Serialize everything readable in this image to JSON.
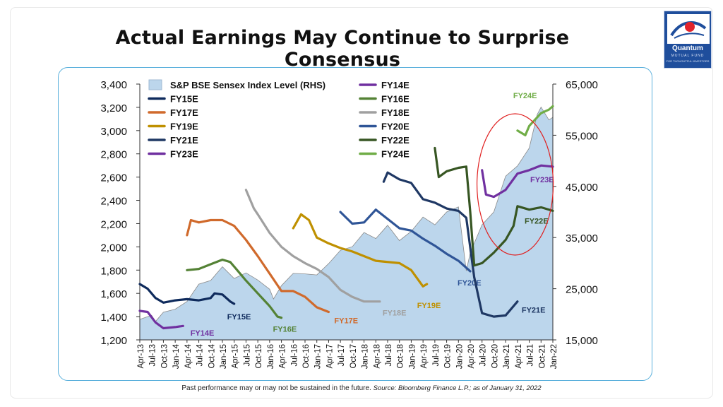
{
  "title": "Actual Earnings May Continue to Surprise Consensus",
  "logo": {
    "name": "Quantum",
    "sub": "MUTUAL FUND",
    "tagline": "FOR THOUGHTFUL INVESTORS",
    "colors": {
      "bg": "#1f4e9c",
      "accent": "#e2242b"
    }
  },
  "footnote": {
    "text": "Past performance may or may not be sustained in the future.",
    "source": "Source: Bloomberg Finance L.P.; as of January 31, 2022"
  },
  "chart_data": {
    "type": "line",
    "title": "",
    "xlabel": "",
    "ylabel": "",
    "y_left_lim": [
      1200,
      3400
    ],
    "y_left_ticks": [
      "1,200",
      "1,400",
      "1,600",
      "1,800",
      "2,000",
      "2,200",
      "2,400",
      "2,600",
      "2,800",
      "3,000",
      "3,200",
      "3,400"
    ],
    "y_right_lim": [
      15000,
      65000
    ],
    "y_right_ticks": [
      "15,000",
      "25,000",
      "35,000",
      "45,000",
      "55,000",
      "65,000"
    ],
    "x_ticks": [
      "Apr-13",
      "Jul-13",
      "Oct-13",
      "Jan-14",
      "Apr-14",
      "Jul-14",
      "Oct-14",
      "Jan-15",
      "Apr-15",
      "Jul-15",
      "Oct-15",
      "Jan-16",
      "Apr-16",
      "Jul-16",
      "Oct-16",
      "Jan-17",
      "Apr-17",
      "Jul-17",
      "Oct-17",
      "Jan-18",
      "Apr-18",
      "Jul-18",
      "Oct-18",
      "Jan-19",
      "Apr-19",
      "Jul-19",
      "Oct-19",
      "Jan-20",
      "Apr-20",
      "Jul-20",
      "Oct-20",
      "Jan-21",
      "Apr-21",
      "Jul-21",
      "Oct-21",
      "Jan-22"
    ],
    "legend_placement": "top-left",
    "grid": false,
    "highlight": {
      "shape": "ellipse",
      "color": "#e02020",
      "around": "FY24E / FY23E / FY22E, Jan-21 to Jan-22"
    },
    "area": {
      "name": "S&P BSE Sensex Index Level (RHS)",
      "axis": "right",
      "color": "#bcd6ec",
      "edge": "#8a8a8a",
      "points": [
        [
          "Apr-13",
          19000
        ],
        [
          "Jul-13",
          19800
        ],
        [
          "Aug-13",
          18600
        ],
        [
          "Oct-13",
          20400
        ],
        [
          "Jan-14",
          21000
        ],
        [
          "Apr-14",
          22500
        ],
        [
          "Jul-14",
          25900
        ],
        [
          "Oct-14",
          26600
        ],
        [
          "Jan-15",
          29300
        ],
        [
          "Apr-15",
          27000
        ],
        [
          "Jul-15",
          28100
        ],
        [
          "Oct-15",
          26700
        ],
        [
          "Jan-16",
          24900
        ],
        [
          "Feb-16",
          23000
        ],
        [
          "Apr-16",
          25600
        ],
        [
          "Jul-16",
          28000
        ],
        [
          "Oct-16",
          27900
        ],
        [
          "Jan-17",
          27700
        ],
        [
          "Apr-17",
          29900
        ],
        [
          "Jul-17",
          32500
        ],
        [
          "Oct-17",
          33200
        ],
        [
          "Jan-18",
          36000
        ],
        [
          "Apr-18",
          34800
        ],
        [
          "Jul-18",
          37400
        ],
        [
          "Oct-18",
          34400
        ],
        [
          "Jan-19",
          36200
        ],
        [
          "Apr-19",
          39000
        ],
        [
          "Jul-19",
          37500
        ],
        [
          "Oct-19",
          40000
        ],
        [
          "Jan-20",
          41000
        ],
        [
          "Mar-20",
          28500
        ],
        [
          "Apr-20",
          32000
        ],
        [
          "Jul-20",
          37500
        ],
        [
          "Oct-20",
          40000
        ],
        [
          "Jan-21",
          47000
        ],
        [
          "Apr-21",
          49000
        ],
        [
          "Jul-21",
          52500
        ],
        [
          "Sep-21",
          59000
        ],
        [
          "Oct-21",
          60500
        ],
        [
          "Dec-21",
          58000
        ],
        [
          "Jan-22",
          58500
        ]
      ]
    },
    "series": [
      {
        "name": "FY14E",
        "color": "#7030a0",
        "label": "FY14E",
        "points": [
          [
            "Apr-13",
            1450
          ],
          [
            "Jun-13",
            1440
          ],
          [
            "Aug-13",
            1350
          ],
          [
            "Oct-13",
            1300
          ],
          [
            "Jan-14",
            1310
          ],
          [
            "Mar-14",
            1320
          ]
        ]
      },
      {
        "name": "FY15E",
        "color": "#0e2a5c",
        "label": "FY15E",
        "points": [
          [
            "Apr-13",
            1680
          ],
          [
            "Jun-13",
            1640
          ],
          [
            "Aug-13",
            1560
          ],
          [
            "Oct-13",
            1520
          ],
          [
            "Jan-14",
            1540
          ],
          [
            "Apr-14",
            1550
          ],
          [
            "Jul-14",
            1540
          ],
          [
            "Oct-14",
            1560
          ],
          [
            "Nov-14",
            1600
          ],
          [
            "Jan-15",
            1590
          ],
          [
            "Mar-15",
            1530
          ],
          [
            "Apr-15",
            1510
          ]
        ]
      },
      {
        "name": "FY16E",
        "color": "#548235",
        "label": "FY16E",
        "points": [
          [
            "Apr-14",
            1800
          ],
          [
            "Jul-14",
            1810
          ],
          [
            "Oct-14",
            1850
          ],
          [
            "Jan-15",
            1890
          ],
          [
            "Mar-15",
            1870
          ],
          [
            "May-15",
            1790
          ],
          [
            "Jul-15",
            1710
          ],
          [
            "Oct-15",
            1600
          ],
          [
            "Jan-16",
            1490
          ],
          [
            "Mar-16",
            1400
          ],
          [
            "Apr-16",
            1390
          ]
        ]
      },
      {
        "name": "FY17E",
        "color": "#d06a2c",
        "label": "FY17E",
        "points": [
          [
            "Apr-14",
            2100
          ],
          [
            "May-14",
            2230
          ],
          [
            "Jul-14",
            2210
          ],
          [
            "Oct-14",
            2230
          ],
          [
            "Jan-15",
            2230
          ],
          [
            "Apr-15",
            2180
          ],
          [
            "Jul-15",
            2060
          ],
          [
            "Oct-15",
            1920
          ],
          [
            "Jan-16",
            1770
          ],
          [
            "Apr-16",
            1620
          ],
          [
            "Jul-16",
            1620
          ],
          [
            "Oct-16",
            1570
          ],
          [
            "Jan-17",
            1480
          ],
          [
            "Apr-17",
            1440
          ]
        ]
      },
      {
        "name": "FY18E",
        "color": "#a0a0a0",
        "label": "FY18E",
        "points": [
          [
            "Jul-15",
            2490
          ],
          [
            "Sep-15",
            2330
          ],
          [
            "Oct-15",
            2280
          ],
          [
            "Jan-16",
            2120
          ],
          [
            "Apr-16",
            2000
          ],
          [
            "Jul-16",
            1920
          ],
          [
            "Oct-16",
            1860
          ],
          [
            "Jan-17",
            1810
          ],
          [
            "Apr-17",
            1740
          ],
          [
            "Jul-17",
            1630
          ],
          [
            "Oct-17",
            1570
          ],
          [
            "Jan-18",
            1530
          ],
          [
            "May-18",
            1530
          ]
        ]
      },
      {
        "name": "FY19E",
        "color": "#bf9000",
        "label": "FY19E",
        "points": [
          [
            "Jul-16",
            2160
          ],
          [
            "Sep-16",
            2280
          ],
          [
            "Nov-16",
            2230
          ],
          [
            "Jan-17",
            2080
          ],
          [
            "Apr-17",
            2030
          ],
          [
            "Jul-17",
            1990
          ],
          [
            "Oct-17",
            1960
          ],
          [
            "Jan-18",
            1920
          ],
          [
            "Apr-18",
            1880
          ],
          [
            "Oct-18",
            1860
          ],
          [
            "Jan-19",
            1800
          ],
          [
            "Apr-19",
            1660
          ],
          [
            "May-19",
            1680
          ]
        ]
      },
      {
        "name": "FY20E",
        "color": "#2f5597",
        "label": "FY20E",
        "points": [
          [
            "Jul-17",
            2300
          ],
          [
            "Oct-17",
            2200
          ],
          [
            "Jan-18",
            2210
          ],
          [
            "Apr-18",
            2320
          ],
          [
            "Jul-18",
            2240
          ],
          [
            "Oct-18",
            2160
          ],
          [
            "Jan-19",
            2140
          ],
          [
            "Apr-19",
            2070
          ],
          [
            "Jul-19",
            2010
          ],
          [
            "Oct-19",
            1940
          ],
          [
            "Jan-20",
            1880
          ],
          [
            "Apr-20",
            1790
          ]
        ]
      },
      {
        "name": "FY21E",
        "color": "#1f3864",
        "label": "FY21E",
        "points": [
          [
            "Jun-18",
            2560
          ],
          [
            "Jul-18",
            2640
          ],
          [
            "Oct-18",
            2580
          ],
          [
            "Jan-19",
            2550
          ],
          [
            "Apr-19",
            2410
          ],
          [
            "Jul-19",
            2380
          ],
          [
            "Oct-19",
            2330
          ],
          [
            "Jan-20",
            2310
          ],
          [
            "Mar-20",
            2250
          ],
          [
            "May-20",
            1740
          ],
          [
            "Jul-20",
            1430
          ],
          [
            "Oct-20",
            1400
          ],
          [
            "Jan-21",
            1410
          ],
          [
            "Apr-21",
            1530
          ]
        ]
      },
      {
        "name": "FY22E",
        "color": "#375623",
        "label": "FY22E",
        "points": [
          [
            "Jul-19",
            2850
          ],
          [
            "Aug-19",
            2600
          ],
          [
            "Oct-19",
            2650
          ],
          [
            "Jan-20",
            2680
          ],
          [
            "Mar-20",
            2690
          ],
          [
            "Apr-20",
            2300
          ],
          [
            "May-20",
            1840
          ],
          [
            "Jul-20",
            1860
          ],
          [
            "Oct-20",
            1950
          ],
          [
            "Jan-21",
            2060
          ],
          [
            "Mar-21",
            2180
          ],
          [
            "Apr-21",
            2350
          ],
          [
            "Jul-21",
            2320
          ],
          [
            "Oct-21",
            2340
          ],
          [
            "Jan-22",
            2310
          ]
        ]
      },
      {
        "name": "FY23E",
        "color": "#7030a0",
        "label": "FY23E",
        "points": [
          [
            "Jul-20",
            2660
          ],
          [
            "Aug-20",
            2450
          ],
          [
            "Oct-20",
            2430
          ],
          [
            "Jan-21",
            2490
          ],
          [
            "Apr-21",
            2630
          ],
          [
            "Jul-21",
            2660
          ],
          [
            "Oct-21",
            2700
          ],
          [
            "Jan-22",
            2690
          ]
        ]
      },
      {
        "name": "FY24E",
        "color": "#70ad47",
        "label": "FY24E",
        "points": [
          [
            "Apr-21",
            3000
          ],
          [
            "Jun-21",
            2960
          ],
          [
            "Jul-21",
            3040
          ],
          [
            "Oct-21",
            3150
          ],
          [
            "Dec-21",
            3180
          ],
          [
            "Jan-22",
            3210
          ]
        ]
      }
    ]
  }
}
